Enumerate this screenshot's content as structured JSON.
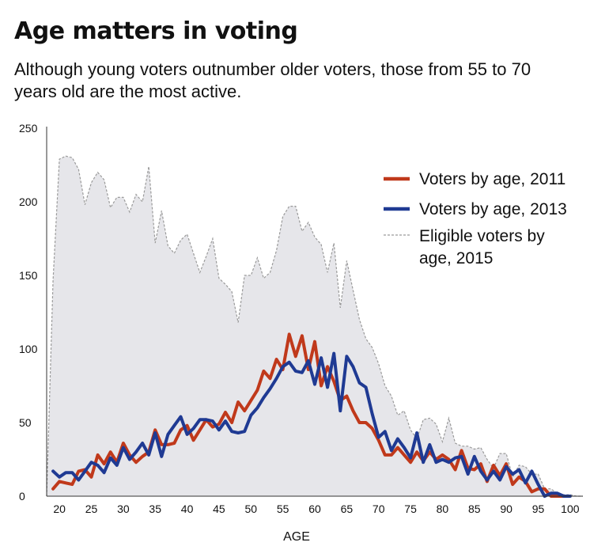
{
  "header": {
    "title": "Age matters in voting",
    "subtitle": "Although young voters outnumber older voters, those from 55 to 70 years old are the most active."
  },
  "chart_data": {
    "type": "line",
    "title": "Age matters in voting",
    "subtitle": "Although young voters outnumber older voters, those from 55 to 70 years old are the most active.",
    "xlabel": "AGE",
    "ylabel": "",
    "xlim": [
      18,
      102
    ],
    "ylim": [
      0,
      250
    ],
    "xticks": [
      20,
      25,
      30,
      35,
      40,
      45,
      50,
      55,
      60,
      65,
      70,
      75,
      80,
      85,
      90,
      95,
      100
    ],
    "yticks": [
      0,
      50,
      100,
      150,
      200,
      250
    ],
    "grid": false,
    "legend_position": "upper-right",
    "x": [
      18,
      19,
      20,
      21,
      22,
      23,
      24,
      25,
      26,
      27,
      28,
      29,
      30,
      31,
      32,
      33,
      34,
      35,
      36,
      37,
      38,
      39,
      40,
      41,
      42,
      43,
      44,
      45,
      46,
      47,
      48,
      49,
      50,
      51,
      52,
      53,
      54,
      55,
      56,
      57,
      58,
      59,
      60,
      61,
      62,
      63,
      64,
      65,
      66,
      67,
      68,
      69,
      70,
      71,
      72,
      73,
      74,
      75,
      76,
      77,
      78,
      79,
      80,
      81,
      82,
      83,
      84,
      85,
      86,
      87,
      88,
      89,
      90,
      91,
      92,
      93,
      94,
      95,
      96,
      97,
      98,
      99,
      100,
      101,
      102
    ],
    "series": [
      {
        "name": "Voters by age, 2011",
        "color": "#c0391b",
        "style": "solid",
        "values": [
          null,
          5,
          10,
          9,
          8,
          17,
          18,
          13,
          28,
          22,
          30,
          23,
          36,
          28,
          23,
          27,
          30,
          45,
          35,
          35,
          36,
          45,
          48,
          38,
          45,
          52,
          47,
          49,
          57,
          50,
          64,
          58,
          65,
          72,
          85,
          80,
          93,
          86,
          110,
          95,
          109,
          86,
          105,
          75,
          88,
          78,
          65,
          68,
          58,
          50,
          50,
          46,
          38,
          28,
          28,
          33,
          28,
          23,
          30,
          24,
          30,
          25,
          28,
          25,
          18,
          31,
          19,
          18,
          22,
          10,
          21,
          14,
          22,
          8,
          13,
          10,
          3,
          5,
          5,
          0,
          0,
          0,
          null,
          null,
          null
        ]
      },
      {
        "name": "Voters by age, 2013",
        "color": "#1f3a93",
        "style": "solid",
        "values": [
          null,
          17,
          13,
          16,
          16,
          11,
          17,
          23,
          21,
          16,
          26,
          21,
          33,
          25,
          30,
          36,
          28,
          43,
          27,
          42,
          48,
          54,
          42,
          46,
          52,
          52,
          51,
          45,
          51,
          44,
          43,
          44,
          55,
          60,
          67,
          73,
          80,
          88,
          91,
          85,
          84,
          92,
          76,
          94,
          74,
          97,
          58,
          95,
          88,
          77,
          74,
          56,
          40,
          44,
          31,
          39,
          33,
          26,
          43,
          23,
          35,
          23,
          25,
          23,
          26,
          27,
          15,
          27,
          17,
          11,
          17,
          11,
          20,
          15,
          18,
          9,
          17,
          8,
          0,
          2,
          2,
          0,
          0,
          null,
          null
        ]
      },
      {
        "name": "Eligible voters by age, 2015",
        "color": "#9a9a9a",
        "fill": "#e6e6ea",
        "style": "dashed",
        "values": [
          0,
          147,
          229,
          231,
          230,
          222,
          198,
          213,
          220,
          215,
          196,
          203,
          203,
          193,
          205,
          200,
          224,
          172,
          194,
          170,
          165,
          174,
          178,
          165,
          152,
          163,
          175,
          148,
          144,
          139,
          118,
          150,
          150,
          162,
          148,
          152,
          167,
          190,
          197,
          197,
          180,
          186,
          176,
          171,
          152,
          172,
          128,
          160,
          140,
          120,
          107,
          101,
          90,
          75,
          68,
          55,
          58,
          45,
          39,
          52,
          53,
          49,
          37,
          53,
          36,
          34,
          34,
          32,
          33,
          25,
          19,
          29,
          29,
          13,
          21,
          20,
          15,
          15,
          5,
          5,
          2,
          1,
          1,
          0,
          0
        ]
      }
    ]
  }
}
